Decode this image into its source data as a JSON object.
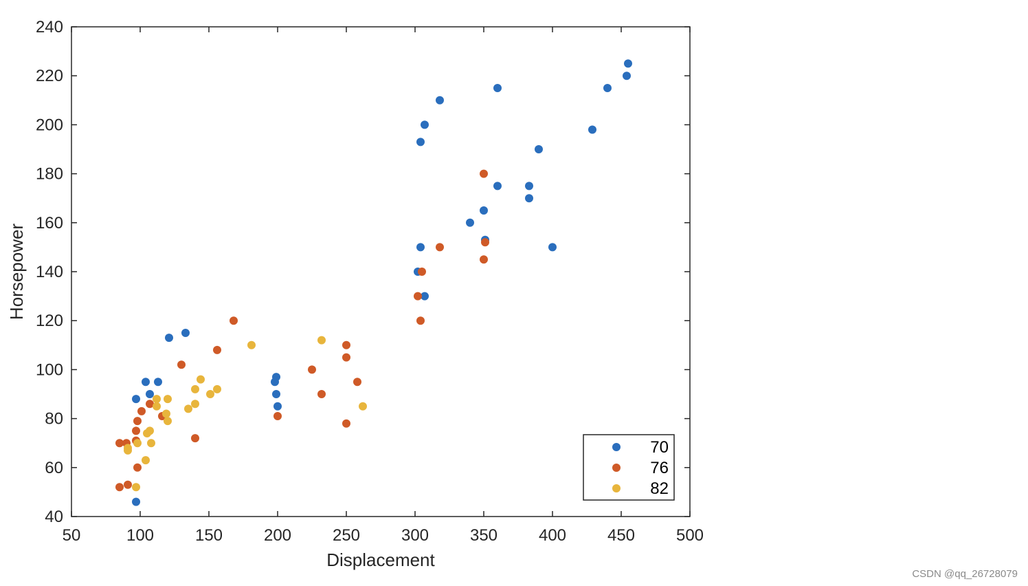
{
  "chart_data": {
    "type": "scatter",
    "title": "",
    "xlabel": "Displacement",
    "ylabel": "Horsepower",
    "xlim": [
      50,
      500
    ],
    "ylim": [
      40,
      240
    ],
    "xticks": [
      50,
      100,
      150,
      200,
      250,
      300,
      350,
      400,
      450,
      500
    ],
    "yticks": [
      40,
      60,
      80,
      100,
      120,
      140,
      160,
      180,
      200,
      220,
      240
    ],
    "grid": false,
    "legend_position": "bottom-right",
    "series": [
      {
        "name": "70",
        "color": "#2a6ebd",
        "points": [
          [
            97,
            46
          ],
          [
            97,
            88
          ],
          [
            104,
            95
          ],
          [
            107,
            90
          ],
          [
            113,
            95
          ],
          [
            121,
            113
          ],
          [
            133,
            115
          ],
          [
            198,
            95
          ],
          [
            199,
            97
          ],
          [
            199,
            90
          ],
          [
            200,
            85
          ],
          [
            302,
            140
          ],
          [
            304,
            150
          ],
          [
            304,
            193
          ],
          [
            307,
            200
          ],
          [
            307,
            130
          ],
          [
            318,
            210
          ],
          [
            340,
            160
          ],
          [
            350,
            165
          ],
          [
            351,
            153
          ],
          [
            360,
            215
          ],
          [
            360,
            175
          ],
          [
            383,
            175
          ],
          [
            383,
            170
          ],
          [
            390,
            190
          ],
          [
            400,
            150
          ],
          [
            429,
            198
          ],
          [
            440,
            215
          ],
          [
            454,
            220
          ],
          [
            455,
            225
          ]
        ]
      },
      {
        "name": "76",
        "color": "#cf5a27",
        "points": [
          [
            85,
            52
          ],
          [
            85,
            70
          ],
          [
            90,
            70
          ],
          [
            91,
            53
          ],
          [
            97,
            71
          ],
          [
            97,
            75
          ],
          [
            98,
            60
          ],
          [
            98,
            79
          ],
          [
            101,
            83
          ],
          [
            107,
            86
          ],
          [
            116,
            81
          ],
          [
            130,
            102
          ],
          [
            140,
            72
          ],
          [
            156,
            108
          ],
          [
            168,
            120
          ],
          [
            200,
            81
          ],
          [
            225,
            100
          ],
          [
            232,
            90
          ],
          [
            250,
            78
          ],
          [
            250,
            105
          ],
          [
            250,
            110
          ],
          [
            258,
            95
          ],
          [
            302,
            130
          ],
          [
            304,
            120
          ],
          [
            305,
            140
          ],
          [
            318,
            150
          ],
          [
            350,
            180
          ],
          [
            350,
            145
          ],
          [
            351,
            152
          ]
        ]
      },
      {
        "name": "82",
        "color": "#e8b53c",
        "points": [
          [
            91,
            67
          ],
          [
            91,
            68
          ],
          [
            97,
            52
          ],
          [
            98,
            70
          ],
          [
            104,
            63
          ],
          [
            105,
            74
          ],
          [
            107,
            75
          ],
          [
            108,
            70
          ],
          [
            112,
            88
          ],
          [
            112,
            85
          ],
          [
            119,
            82
          ],
          [
            120,
            88
          ],
          [
            120,
            79
          ],
          [
            135,
            84
          ],
          [
            140,
            86
          ],
          [
            140,
            92
          ],
          [
            144,
            96
          ],
          [
            151,
            90
          ],
          [
            156,
            92
          ],
          [
            181,
            110
          ],
          [
            232,
            112
          ],
          [
            262,
            85
          ]
        ]
      }
    ]
  },
  "watermark": "CSDN @qq_26728079"
}
